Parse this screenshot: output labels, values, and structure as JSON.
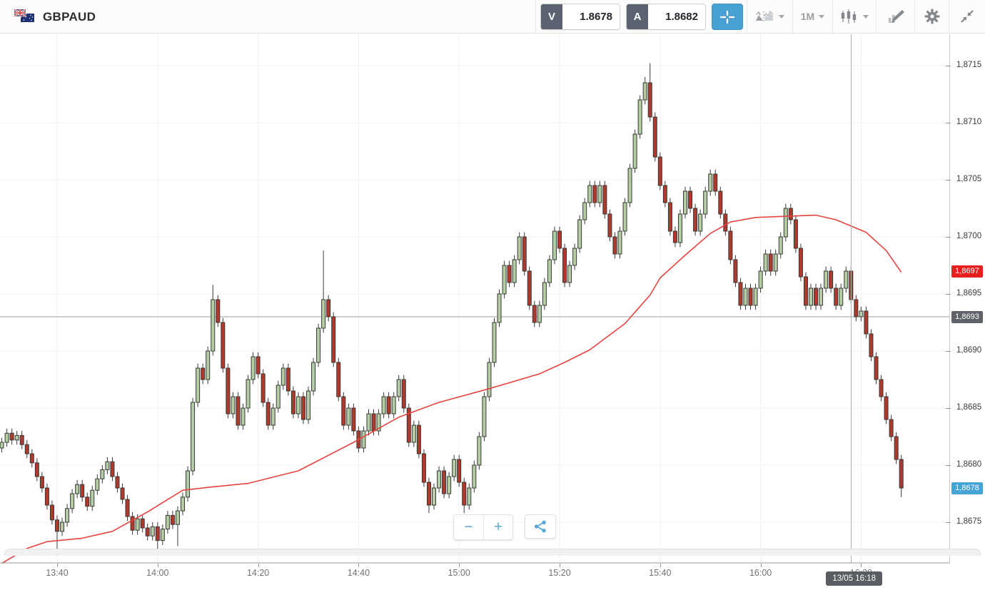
{
  "header": {
    "symbol": "GBPAUD",
    "flags": [
      "uk-flag",
      "australia-flag"
    ],
    "sell": {
      "label": "V",
      "value": "1.8678"
    },
    "buy": {
      "label": "A",
      "value": "1.8682"
    },
    "crosshair_button": {
      "icon": "crosshair-icon",
      "active": true
    },
    "tools": [
      {
        "name": "chart-type",
        "icon": "area-chart-icon",
        "has_caret": true
      },
      {
        "name": "timeframe",
        "label": "1M",
        "has_caret": true
      },
      {
        "name": "indicators",
        "icon": "candlestick-icon",
        "has_caret": true
      },
      {
        "name": "drawing",
        "icon": "pencil-icon"
      },
      {
        "name": "settings",
        "icon": "gear-icon"
      },
      {
        "name": "collapse",
        "icon": "collapse-arrows-icon"
      }
    ]
  },
  "badges": {
    "ma": {
      "label": "1,8697",
      "price": 1.8697,
      "color": "#e71f1d"
    },
    "reference": {
      "label": "1,8693",
      "price": 1.8693,
      "color": "#5f6368"
    },
    "last": {
      "label": "1,8678",
      "price": 1.8678,
      "color": "#46a3d8"
    }
  },
  "controls": {
    "zoom_out": "−",
    "zoom_in": "+",
    "share_icon": "share-icon"
  },
  "colors": {
    "bull": "#b5cda3",
    "bear": "#b0392c",
    "candle_outline": "#383838",
    "ma_line": "#e8433e",
    "grid": "#f1f1f1",
    "axis_line": "#9a9a9a",
    "reference_line": "#9b9b9b",
    "crosshair_line": "#aeaeae",
    "accent_blue": "#48a1d3"
  },
  "chart_data": {
    "type": "candlestick",
    "symbol": "GBPAUD",
    "interval": "1M",
    "start_time": "13:29",
    "end_time": "16:28",
    "interval_minutes": 1,
    "price_axis": {
      "min_visible": 1.8672,
      "max_visible": 1.8717,
      "tick_step": 0.0005,
      "ticks": [
        {
          "price": 1.8715,
          "label": "1,8715"
        },
        {
          "price": 1.871,
          "label": "1,8710"
        },
        {
          "price": 1.8705,
          "label": "1,8705"
        },
        {
          "price": 1.87,
          "label": "1,8700"
        },
        {
          "price": 1.8695,
          "label": "1,8695"
        },
        {
          "price": 1.869,
          "label": "1,8690"
        },
        {
          "price": 1.8685,
          "label": "1,8685"
        },
        {
          "price": 1.868,
          "label": "1,8680"
        },
        {
          "price": 1.8675,
          "label": "1,8675"
        }
      ]
    },
    "time_ticks": [
      {
        "label": "13:40",
        "index": 11
      },
      {
        "label": "14:00",
        "index": 31
      },
      {
        "label": "14:20",
        "index": 51
      },
      {
        "label": "14:40",
        "index": 71
      },
      {
        "label": "15:00",
        "index": 91
      },
      {
        "label": "15:20",
        "index": 111
      },
      {
        "label": "15:40",
        "index": 131
      },
      {
        "label": "16:00",
        "index": 151
      },
      {
        "label": "16:20",
        "index": 171
      }
    ],
    "first_open": 1.86815,
    "default_wick": 4e-05,
    "closes": [
      1.8682,
      1.86828,
      1.86822,
      1.86826,
      1.86818,
      1.8681,
      1.86802,
      1.8679,
      1.8678,
      1.86765,
      1.86752,
      1.86742,
      1.8675,
      1.86762,
      1.86775,
      1.86783,
      1.86772,
      1.86764,
      1.86778,
      1.86788,
      1.86796,
      1.86803,
      1.8679,
      1.8678,
      1.8677,
      1.86755,
      1.86743,
      1.86753,
      1.86745,
      1.86738,
      1.86746,
      1.86734,
      1.86744,
      1.86756,
      1.86748,
      1.8676,
      1.86772,
      1.86795,
      1.86855,
      1.86885,
      1.86875,
      1.869,
      1.86945,
      1.86925,
      1.86885,
      1.86845,
      1.8686,
      1.86835,
      1.8685,
      1.86875,
      1.86895,
      1.8688,
      1.86855,
      1.86835,
      1.8685,
      1.8687,
      1.86885,
      1.86865,
      1.86845,
      1.8686,
      1.8684,
      1.86865,
      1.8689,
      1.8692,
      1.86945,
      1.8693,
      1.8689,
      1.8686,
      1.86835,
      1.8685,
      1.8683,
      1.86815,
      1.8683,
      1.86845,
      1.8683,
      1.86845,
      1.8686,
      1.86845,
      1.8686,
      1.86875,
      1.8685,
      1.8682,
      1.86835,
      1.8681,
      1.86785,
      1.86765,
      1.8678,
      1.86795,
      1.86775,
      1.8679,
      1.86805,
      1.86785,
      1.86765,
      1.8678,
      1.868,
      1.86825,
      1.8686,
      1.8689,
      1.86925,
      1.8695,
      1.86975,
      1.8696,
      1.8698,
      1.87,
      1.8697,
      1.8694,
      1.86925,
      1.8694,
      1.8696,
      1.8698,
      1.87005,
      1.8699,
      1.8696,
      1.86975,
      1.8699,
      1.87015,
      1.8703,
      1.87045,
      1.8703,
      1.87045,
      1.8702,
      1.87,
      1.86985,
      1.87005,
      1.8703,
      1.8706,
      1.8709,
      1.8712,
      1.87135,
      1.87105,
      1.8707,
      1.87045,
      1.8703,
      1.87005,
      1.86995,
      1.8702,
      1.8704,
      1.87025,
      1.87005,
      1.8702,
      1.8704,
      1.87055,
      1.8704,
      1.8702,
      1.87005,
      1.8698,
      1.8696,
      1.8694,
      1.86955,
      1.8694,
      1.86955,
      1.8697,
      1.86985,
      1.8697,
      1.86985,
      1.87,
      1.87025,
      1.87015,
      1.8699,
      1.86965,
      1.8694,
      1.86955,
      1.8694,
      1.86955,
      1.8697,
      1.86955,
      1.8694,
      1.86955,
      1.8697,
      1.86945,
      1.8693,
      1.86935,
      1.86915,
      1.86895,
      1.86875,
      1.8686,
      1.8684,
      1.86825,
      1.86805,
      1.8678
    ],
    "wick_overrides": {
      "11": {
        "low": 1.86726
      },
      "31": {
        "low": 1.86725
      },
      "35": {
        "low": 1.86729
      },
      "42": {
        "high": 1.86958
      },
      "64": {
        "high": 1.86988
      },
      "85": {
        "low": 1.86758
      },
      "92": {
        "low": 1.86758
      },
      "128": {
        "high": 1.8714
      },
      "129": {
        "high": 1.87152
      },
      "179": {
        "low": 1.86772
      }
    },
    "ma_line": {
      "name": "moving-average",
      "points": [
        [
          0,
          1.86714
        ],
        [
          5,
          1.86727
        ],
        [
          9,
          1.86733
        ],
        [
          16,
          1.86736
        ],
        [
          22,
          1.86742
        ],
        [
          29,
          1.86759
        ],
        [
          36,
          1.86778
        ],
        [
          42,
          1.86781
        ],
        [
          49,
          1.86784
        ],
        [
          59,
          1.86795
        ],
        [
          70,
          1.8682
        ],
        [
          79,
          1.86842
        ],
        [
          87,
          1.86855
        ],
        [
          97,
          1.86867
        ],
        [
          107,
          1.8688
        ],
        [
          112,
          1.8689
        ],
        [
          117,
          1.86901
        ],
        [
          124,
          1.86924
        ],
        [
          129,
          1.86949
        ],
        [
          131,
          1.86964
        ],
        [
          136,
          1.86984
        ],
        [
          141,
          1.87003
        ],
        [
          145,
          1.87013
        ],
        [
          150,
          1.87017
        ],
        [
          156,
          1.87018
        ],
        [
          162,
          1.87019
        ],
        [
          166,
          1.87015
        ],
        [
          172,
          1.87004
        ],
        [
          176,
          1.86988
        ],
        [
          179,
          1.86969
        ]
      ],
      "last_value": 1.8697
    },
    "levels": {
      "reference": 1.8693
    },
    "last_price": 1.8678,
    "crosshair": {
      "label": "13/05 16:18",
      "index": 169,
      "time": "16:18",
      "date": "13/05"
    }
  }
}
